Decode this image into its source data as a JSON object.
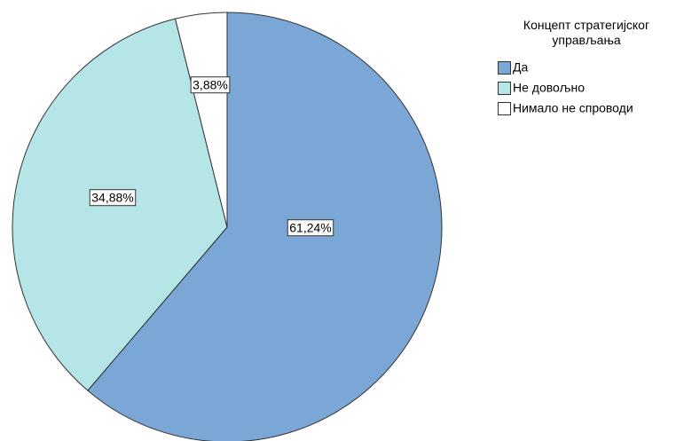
{
  "chart_data": {
    "type": "pie",
    "legend_title": "Концепт стратегијског управљања",
    "categories": [
      "Да",
      "Не довољно",
      "Нимало не спроводи"
    ],
    "values": [
      61.24,
      34.88,
      3.88
    ],
    "value_labels": [
      "61,24%",
      "34,88%",
      "3,88%"
    ],
    "colors": [
      "#7ba7d6",
      "#b5e5e7",
      "#ffffff"
    ],
    "legend": "right"
  }
}
